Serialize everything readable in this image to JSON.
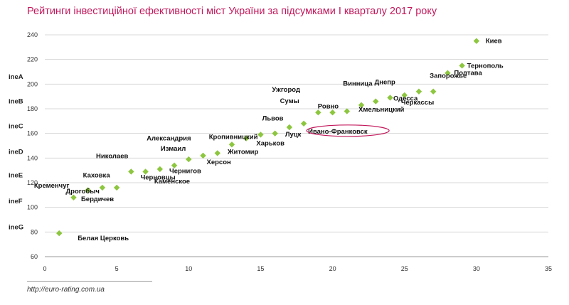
{
  "chart_data": {
    "type": "scatter",
    "title": "Рейтинги інвестиційної ефективності міст України за підсумками I кварталу 2017 року",
    "source": "http://euro-rating.com.ua",
    "xlabel": "",
    "ylabel": "",
    "xlim": [
      0,
      35
    ],
    "ylim": [
      60,
      240
    ],
    "x_ticks": [
      0,
      5,
      10,
      15,
      20,
      25,
      30,
      35
    ],
    "y_ticks": [
      60,
      80,
      100,
      120,
      140,
      160,
      180,
      200,
      220,
      240
    ],
    "grid": "horizontal",
    "marker_color": "#8dc63f",
    "highlight_color": "#c2185b",
    "ratings": [
      {
        "label": "ineA",
        "y": 206
      },
      {
        "label": "ineB",
        "y": 186
      },
      {
        "label": "ineC",
        "y": 166
      },
      {
        "label": "ineD",
        "y": 145
      },
      {
        "label": "ineE",
        "y": 126
      },
      {
        "label": "ineF",
        "y": 105
      },
      {
        "label": "ineG",
        "y": 84
      }
    ],
    "points": [
      {
        "name": "Белая Церковь",
        "x": 1,
        "y": 79
      },
      {
        "name": "Кременчуг",
        "x": 2,
        "y": 108
      },
      {
        "name": "Каховка",
        "x": 3,
        "y": 114
      },
      {
        "name": "Дрогобыч",
        "x": 4,
        "y": 116
      },
      {
        "name": "Бердичев",
        "x": 5,
        "y": 116
      },
      {
        "name": "Николаев",
        "x": 6,
        "y": 129
      },
      {
        "name": "Черновцы",
        "x": 7,
        "y": 129
      },
      {
        "name": "Каменское",
        "x": 8,
        "y": 131
      },
      {
        "name": "Чернигов",
        "x": 9,
        "y": 134
      },
      {
        "name": "Измаил",
        "x": 10,
        "y": 139
      },
      {
        "name": "Херсон",
        "x": 11,
        "y": 142
      },
      {
        "name": "Кропивницкий",
        "x": 12,
        "y": 144
      },
      {
        "name": "Житомир",
        "x": 13,
        "y": 151
      },
      {
        "name": "Александрия",
        "x": 14,
        "y": 156
      },
      {
        "name": "Харьков",
        "x": 15,
        "y": 159
      },
      {
        "name": "Львов",
        "x": 16,
        "y": 160
      },
      {
        "name": "Луцк",
        "x": 17,
        "y": 165
      },
      {
        "name": "Ивано-Франковск",
        "x": 18,
        "y": 168,
        "highlight": true
      },
      {
        "name": "Ужгород",
        "x": 19,
        "y": 177
      },
      {
        "name": "Сумы",
        "x": 20,
        "y": 177
      },
      {
        "name": "Ровно",
        "x": 21,
        "y": 178
      },
      {
        "name": "Хмельницкий",
        "x": 22,
        "y": 183
      },
      {
        "name": "Винница",
        "x": 23,
        "y": 186
      },
      {
        "name": "Днепр",
        "x": 24,
        "y": 189
      },
      {
        "name": "Черкассы",
        "x": 25,
        "y": 191
      },
      {
        "name": "Одесса",
        "x": 26,
        "y": 194
      },
      {
        "name": "Запорожье",
        "x": 27,
        "y": 194
      },
      {
        "name": "Полтава",
        "x": 28,
        "y": 209
      },
      {
        "name": "Тернополь",
        "x": 29,
        "y": 215
      },
      {
        "name": "Киев",
        "x": 30,
        "y": 235
      }
    ]
  }
}
